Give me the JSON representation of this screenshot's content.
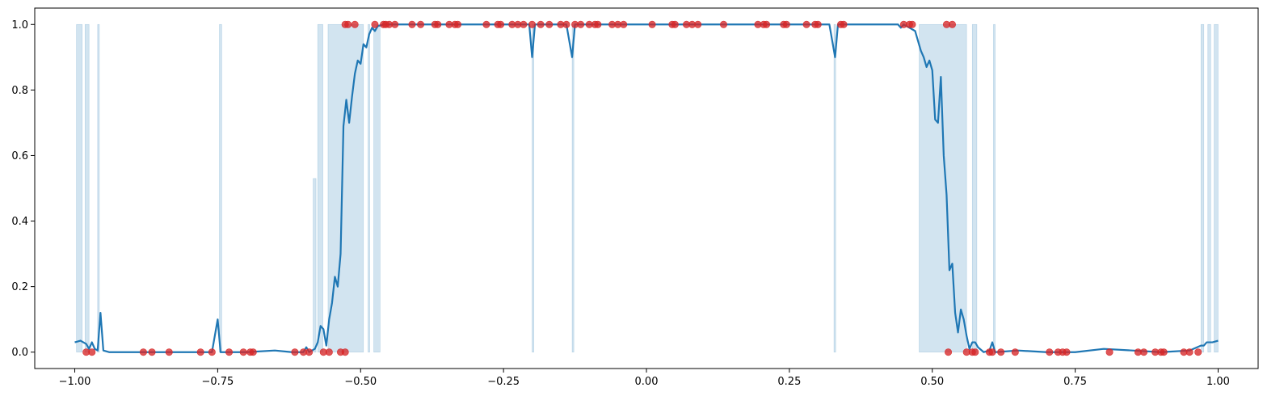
{
  "chart_data": {
    "type": "line",
    "title": "",
    "xlabel": "",
    "ylabel": "",
    "xlim": [
      -1.07,
      1.07
    ],
    "ylim": [
      -0.05,
      1.05
    ],
    "x_ticks": [
      -1.0,
      -0.75,
      -0.5,
      -0.25,
      0.0,
      0.25,
      0.5,
      0.75,
      1.0
    ],
    "x_tick_labels": [
      "−1.00",
      "−0.75",
      "−0.50",
      "−0.25",
      "0.00",
      "0.25",
      "0.50",
      "0.75",
      "1.00"
    ],
    "y_ticks": [
      0.0,
      0.2,
      0.4,
      0.6,
      0.8,
      1.0
    ],
    "y_tick_labels": [
      "0.0",
      "0.2",
      "0.4",
      "0.6",
      "0.8",
      "1.0"
    ],
    "grid": false,
    "colors": {
      "line": "#1f77b4",
      "band": "#1f77b4",
      "points": "#d62728"
    },
    "series": [
      {
        "kind": "line",
        "points": [
          [
            -1.0,
            0.03
          ],
          [
            -0.99,
            0.035
          ],
          [
            -0.98,
            0.025
          ],
          [
            -0.975,
            0.01
          ],
          [
            -0.97,
            0.03
          ],
          [
            -0.965,
            0.01
          ],
          [
            -0.96,
            0.005
          ],
          [
            -0.955,
            0.12
          ],
          [
            -0.95,
            0.005
          ],
          [
            -0.94,
            0.0
          ],
          [
            -0.9,
            0.0
          ],
          [
            -0.85,
            0.0
          ],
          [
            -0.8,
            0.0
          ],
          [
            -0.76,
            0.0
          ],
          [
            -0.75,
            0.1
          ],
          [
            -0.745,
            0.0
          ],
          [
            -0.7,
            0.0
          ],
          [
            -0.65,
            0.005
          ],
          [
            -0.62,
            0.0
          ],
          [
            -0.6,
            0.0
          ],
          [
            -0.595,
            0.015
          ],
          [
            -0.59,
            0.0
          ],
          [
            -0.58,
            0.01
          ],
          [
            -0.575,
            0.03
          ],
          [
            -0.57,
            0.08
          ],
          [
            -0.565,
            0.07
          ],
          [
            -0.56,
            0.02
          ],
          [
            -0.555,
            0.1
          ],
          [
            -0.55,
            0.15
          ],
          [
            -0.545,
            0.23
          ],
          [
            -0.54,
            0.2
          ],
          [
            -0.535,
            0.3
          ],
          [
            -0.53,
            0.69
          ],
          [
            -0.525,
            0.77
          ],
          [
            -0.52,
            0.7
          ],
          [
            -0.515,
            0.78
          ],
          [
            -0.51,
            0.85
          ],
          [
            -0.505,
            0.89
          ],
          [
            -0.5,
            0.88
          ],
          [
            -0.495,
            0.94
          ],
          [
            -0.49,
            0.93
          ],
          [
            -0.485,
            0.97
          ],
          [
            -0.48,
            0.99
          ],
          [
            -0.475,
            0.98
          ],
          [
            -0.47,
            0.995
          ],
          [
            -0.46,
            1.0
          ],
          [
            -0.4,
            1.0
          ],
          [
            -0.3,
            1.0
          ],
          [
            -0.205,
            1.0
          ],
          [
            -0.2,
            0.9
          ],
          [
            -0.195,
            1.0
          ],
          [
            -0.14,
            1.0
          ],
          [
            -0.13,
            0.9
          ],
          [
            -0.125,
            1.0
          ],
          [
            0.0,
            1.0
          ],
          [
            0.2,
            1.0
          ],
          [
            0.32,
            1.0
          ],
          [
            0.33,
            0.9
          ],
          [
            0.335,
            1.0
          ],
          [
            0.44,
            1.0
          ],
          [
            0.445,
            0.99
          ],
          [
            0.45,
            1.0
          ],
          [
            0.46,
            0.99
          ],
          [
            0.47,
            0.98
          ],
          [
            0.475,
            0.95
          ],
          [
            0.48,
            0.92
          ],
          [
            0.485,
            0.9
          ],
          [
            0.49,
            0.87
          ],
          [
            0.495,
            0.89
          ],
          [
            0.5,
            0.86
          ],
          [
            0.505,
            0.71
          ],
          [
            0.51,
            0.7
          ],
          [
            0.515,
            0.84
          ],
          [
            0.52,
            0.6
          ],
          [
            0.525,
            0.48
          ],
          [
            0.53,
            0.25
          ],
          [
            0.535,
            0.27
          ],
          [
            0.54,
            0.12
          ],
          [
            0.545,
            0.06
          ],
          [
            0.55,
            0.13
          ],
          [
            0.555,
            0.1
          ],
          [
            0.56,
            0.05
          ],
          [
            0.565,
            0.01
          ],
          [
            0.57,
            0.03
          ],
          [
            0.575,
            0.03
          ],
          [
            0.58,
            0.015
          ],
          [
            0.59,
            0.0
          ],
          [
            0.6,
            0.005
          ],
          [
            0.605,
            0.03
          ],
          [
            0.61,
            0.0
          ],
          [
            0.65,
            0.005
          ],
          [
            0.7,
            0.0
          ],
          [
            0.75,
            0.0
          ],
          [
            0.8,
            0.01
          ],
          [
            0.85,
            0.005
          ],
          [
            0.9,
            0.0
          ],
          [
            0.95,
            0.005
          ],
          [
            0.97,
            0.02
          ],
          [
            0.975,
            0.02
          ],
          [
            0.98,
            0.03
          ],
          [
            0.99,
            0.03
          ],
          [
            1.0,
            0.035
          ]
        ]
      },
      {
        "kind": "band",
        "description": "shaded confidence region, each interval [x0, x1, y_low, y_high]",
        "intervals": [
          [
            -0.997,
            -0.987,
            0.0,
            1.0
          ],
          [
            -0.982,
            -0.975,
            0.0,
            1.0
          ],
          [
            -0.96,
            -0.957,
            0.0,
            1.0
          ],
          [
            -0.747,
            -0.743,
            0.0,
            1.0
          ],
          [
            -0.583,
            -0.578,
            0.0,
            0.53
          ],
          [
            -0.575,
            -0.566,
            0.0,
            1.0
          ],
          [
            -0.557,
            -0.495,
            0.0,
            1.0
          ],
          [
            -0.487,
            -0.484,
            0.0,
            1.0
          ],
          [
            -0.477,
            -0.466,
            0.0,
            1.0
          ],
          [
            -0.2,
            -0.197,
            0.0,
            1.0
          ],
          [
            -0.13,
            -0.127,
            0.0,
            1.0
          ],
          [
            0.328,
            0.331,
            0.0,
            1.0
          ],
          [
            0.477,
            0.56,
            0.0,
            1.0
          ],
          [
            0.57,
            0.578,
            0.0,
            1.0
          ],
          [
            0.607,
            0.61,
            0.0,
            1.0
          ],
          [
            0.97,
            0.975,
            0.0,
            1.0
          ],
          [
            0.982,
            0.987,
            0.0,
            1.0
          ],
          [
            0.993,
            1.0,
            0.0,
            1.0
          ]
        ]
      },
      {
        "kind": "scatter",
        "points": [
          [
            -0.98,
            0.0
          ],
          [
            -0.97,
            0.0
          ],
          [
            -0.88,
            0.0
          ],
          [
            -0.865,
            0.0
          ],
          [
            -0.835,
            0.0
          ],
          [
            -0.78,
            0.0
          ],
          [
            -0.76,
            0.0
          ],
          [
            -0.73,
            0.0
          ],
          [
            -0.705,
            0.0
          ],
          [
            -0.693,
            0.0
          ],
          [
            -0.688,
            0.0
          ],
          [
            -0.615,
            0.0
          ],
          [
            -0.6,
            0.0
          ],
          [
            -0.59,
            0.0
          ],
          [
            -0.565,
            0.0
          ],
          [
            -0.555,
            0.0
          ],
          [
            -0.535,
            0.0
          ],
          [
            -0.527,
            0.0
          ],
          [
            -0.527,
            1.0
          ],
          [
            -0.522,
            1.0
          ],
          [
            -0.51,
            1.0
          ],
          [
            -0.475,
            1.0
          ],
          [
            -0.46,
            1.0
          ],
          [
            -0.456,
            1.0
          ],
          [
            -0.45,
            1.0
          ],
          [
            -0.44,
            1.0
          ],
          [
            -0.41,
            1.0
          ],
          [
            -0.395,
            1.0
          ],
          [
            -0.37,
            1.0
          ],
          [
            -0.365,
            1.0
          ],
          [
            -0.345,
            1.0
          ],
          [
            -0.335,
            1.0
          ],
          [
            -0.33,
            1.0
          ],
          [
            -0.28,
            1.0
          ],
          [
            -0.26,
            1.0
          ],
          [
            -0.255,
            1.0
          ],
          [
            -0.235,
            1.0
          ],
          [
            -0.225,
            1.0
          ],
          [
            -0.215,
            1.0
          ],
          [
            -0.2,
            1.0
          ],
          [
            -0.185,
            1.0
          ],
          [
            -0.17,
            1.0
          ],
          [
            -0.15,
            1.0
          ],
          [
            -0.14,
            1.0
          ],
          [
            -0.125,
            1.0
          ],
          [
            -0.115,
            1.0
          ],
          [
            -0.1,
            1.0
          ],
          [
            -0.09,
            1.0
          ],
          [
            -0.085,
            1.0
          ],
          [
            -0.06,
            1.0
          ],
          [
            -0.05,
            1.0
          ],
          [
            -0.04,
            1.0
          ],
          [
            0.01,
            1.0
          ],
          [
            0.045,
            1.0
          ],
          [
            0.05,
            1.0
          ],
          [
            0.07,
            1.0
          ],
          [
            0.08,
            1.0
          ],
          [
            0.09,
            1.0
          ],
          [
            0.135,
            1.0
          ],
          [
            0.195,
            1.0
          ],
          [
            0.205,
            1.0
          ],
          [
            0.21,
            1.0
          ],
          [
            0.24,
            1.0
          ],
          [
            0.245,
            1.0
          ],
          [
            0.28,
            1.0
          ],
          [
            0.295,
            1.0
          ],
          [
            0.3,
            1.0
          ],
          [
            0.34,
            1.0
          ],
          [
            0.345,
            1.0
          ],
          [
            0.45,
            1.0
          ],
          [
            0.46,
            1.0
          ],
          [
            0.465,
            1.0
          ],
          [
            0.525,
            1.0
          ],
          [
            0.535,
            1.0
          ],
          [
            0.528,
            0.0
          ],
          [
            0.56,
            0.0
          ],
          [
            0.57,
            0.0
          ],
          [
            0.575,
            0.0
          ],
          [
            0.6,
            0.0
          ],
          [
            0.605,
            0.0
          ],
          [
            0.62,
            0.0
          ],
          [
            0.645,
            0.0
          ],
          [
            0.705,
            0.0
          ],
          [
            0.72,
            0.0
          ],
          [
            0.728,
            0.0
          ],
          [
            0.735,
            0.0
          ],
          [
            0.81,
            0.0
          ],
          [
            0.86,
            0.0
          ],
          [
            0.87,
            0.0
          ],
          [
            0.89,
            0.0
          ],
          [
            0.9,
            0.0
          ],
          [
            0.905,
            0.0
          ],
          [
            0.94,
            0.0
          ],
          [
            0.95,
            0.0
          ],
          [
            0.965,
            0.0
          ]
        ]
      }
    ]
  }
}
